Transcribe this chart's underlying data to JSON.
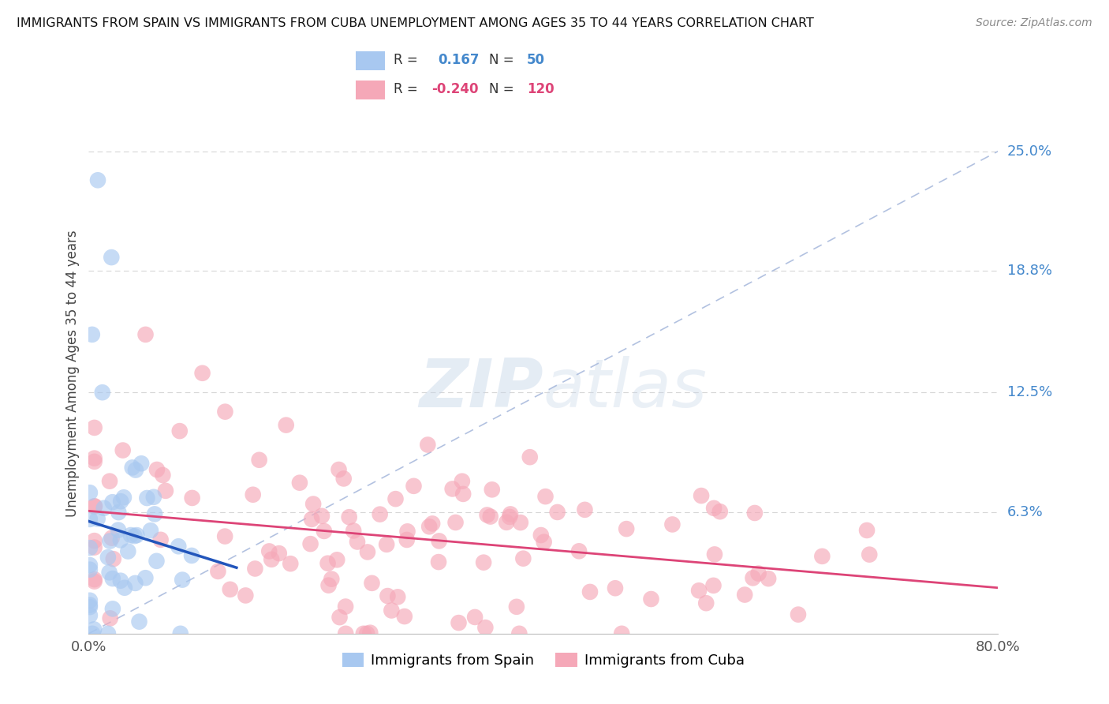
{
  "title": "IMMIGRANTS FROM SPAIN VS IMMIGRANTS FROM CUBA UNEMPLOYMENT AMONG AGES 35 TO 44 YEARS CORRELATION CHART",
  "source": "Source: ZipAtlas.com",
  "ylabel": "Unemployment Among Ages 35 to 44 years",
  "xlim": [
    0.0,
    0.8
  ],
  "ylim": [
    0.0,
    0.27
  ],
  "ytick_right_labels": [
    "6.3%",
    "12.5%",
    "18.8%",
    "25.0%"
  ],
  "ytick_right_values": [
    0.063,
    0.125,
    0.188,
    0.25
  ],
  "spain_R": 0.167,
  "spain_N": 50,
  "cuba_R": -0.24,
  "cuba_N": 120,
  "spain_color": "#a8c8f0",
  "cuba_color": "#f5a8b8",
  "spain_line_color": "#2255bb",
  "cuba_line_color": "#dd4477",
  "ref_line_color": "#aabbdd",
  "background_color": "#ffffff",
  "grid_color": "#cccccc",
  "legend_box_color": "#e8f0f8",
  "legend_border_color": "#aabbcc"
}
